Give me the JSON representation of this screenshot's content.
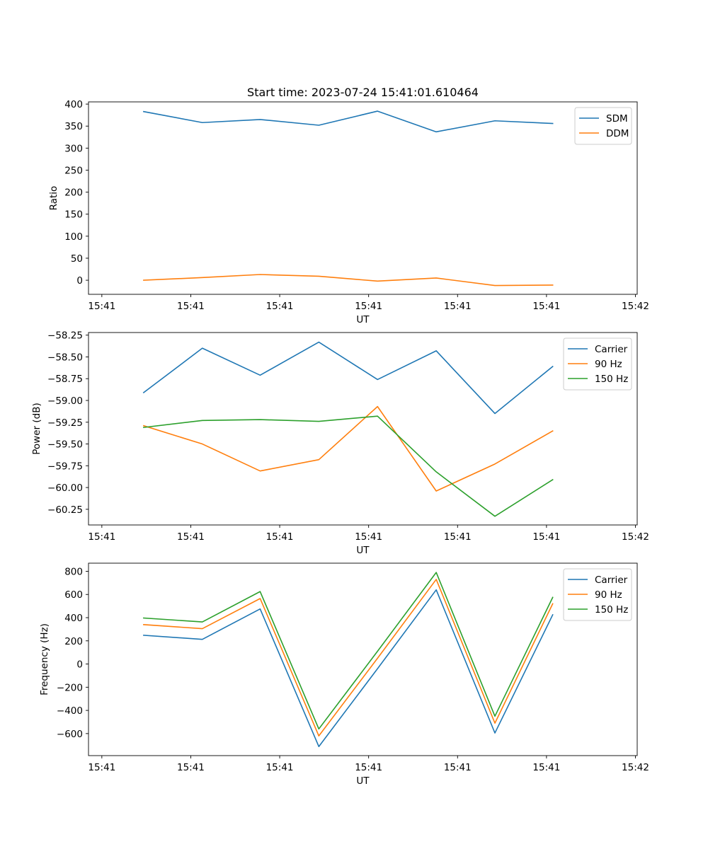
{
  "chart_data": [
    {
      "type": "line",
      "title": "Start time: 2023-07-24 15:41:01.610464",
      "xlabel": "UT",
      "ylabel": "Ratio",
      "x_tick_labels": [
        "15:41",
        "15:41",
        "15:41",
        "15:41",
        "15:41",
        "15:41",
        "15:42"
      ],
      "y_tick_labels": [
        "0",
        "50",
        "100",
        "150",
        "200",
        "250",
        "300",
        "350",
        "400"
      ],
      "y_ticks": [
        0,
        50,
        100,
        150,
        200,
        250,
        300,
        350,
        400
      ],
      "x_tick_positions": [
        0,
        1,
        2,
        3,
        4,
        5,
        6
      ],
      "xlim": [
        -0.15,
        6.02
      ],
      "ylim": [
        -32,
        405
      ],
      "x": [
        0.47,
        1.13,
        1.78,
        2.44,
        3.1,
        3.76,
        4.42,
        5.07
      ],
      "series": [
        {
          "name": "SDM",
          "color": "#1f77b4",
          "values": [
            383,
            358,
            365,
            352,
            384,
            337,
            362,
            356
          ]
        },
        {
          "name": "DDM",
          "color": "#ff7f0e",
          "values": [
            0,
            6,
            13,
            9,
            -2,
            5,
            -12,
            -11
          ]
        }
      ],
      "legend": "top-right",
      "grid": false
    },
    {
      "type": "line",
      "title": "",
      "xlabel": "UT",
      "ylabel": "Power (dB)",
      "x_tick_labels": [
        "15:41",
        "15:41",
        "15:41",
        "15:41",
        "15:41",
        "15:41",
        "15:42"
      ],
      "y_tick_labels": [
        "−60.25",
        "−60.00",
        "−59.75",
        "−59.50",
        "−59.25",
        "−59.00",
        "−58.75",
        "−58.50",
        "−58.25"
      ],
      "y_ticks": [
        -60.25,
        -60.0,
        -59.75,
        -59.5,
        -59.25,
        -59.0,
        -58.75,
        -58.5,
        -58.25
      ],
      "x_tick_positions": [
        0,
        1,
        2,
        3,
        4,
        5,
        6
      ],
      "xlim": [
        -0.15,
        6.02
      ],
      "ylim": [
        -60.43,
        -58.22
      ],
      "x": [
        0.47,
        1.13,
        1.78,
        2.44,
        3.1,
        3.76,
        4.42,
        5.07
      ],
      "series": [
        {
          "name": "Carrier",
          "color": "#1f77b4",
          "values": [
            -58.91,
            -58.4,
            -58.71,
            -58.33,
            -58.76,
            -58.43,
            -59.15,
            -58.61
          ]
        },
        {
          "name": "90 Hz",
          "color": "#ff7f0e",
          "values": [
            -59.29,
            -59.5,
            -59.81,
            -59.68,
            -59.07,
            -60.04,
            -59.73,
            -59.35
          ]
        },
        {
          "name": "150 Hz",
          "color": "#2ca02c",
          "values": [
            -59.31,
            -59.23,
            -59.22,
            -59.24,
            -59.18,
            -59.82,
            -60.33,
            -59.91
          ]
        }
      ],
      "legend": "top-right",
      "grid": false
    },
    {
      "type": "line",
      "title": "",
      "xlabel": "UT",
      "ylabel": "Frequency (Hz)",
      "x_tick_labels": [
        "15:41",
        "15:41",
        "15:41",
        "15:41",
        "15:41",
        "15:41",
        "15:42"
      ],
      "y_tick_labels": [
        "−600",
        "−400",
        "−200",
        "0",
        "200",
        "400",
        "600",
        "800"
      ],
      "y_ticks": [
        -600,
        -400,
        -200,
        0,
        200,
        400,
        600,
        800
      ],
      "x_tick_positions": [
        0,
        1,
        2,
        3,
        4,
        5,
        6
      ],
      "xlim": [
        -0.15,
        6.02
      ],
      "ylim": [
        -790,
        870
      ],
      "x": [
        0.47,
        1.13,
        1.78,
        2.44,
        3.1,
        3.76,
        4.42,
        5.07
      ],
      "series": [
        {
          "name": "Carrier",
          "color": "#1f77b4",
          "values": [
            248,
            213,
            475,
            -712,
            -40,
            640,
            -595,
            425
          ]
        },
        {
          "name": "90 Hz",
          "color": "#ff7f0e",
          "values": [
            340,
            305,
            565,
            -620,
            50,
            730,
            -510,
            520
          ]
        },
        {
          "name": "150 Hz",
          "color": "#2ca02c",
          "values": [
            397,
            363,
            625,
            -560,
            110,
            790,
            -450,
            575
          ]
        }
      ],
      "legend": "top-right",
      "grid": false
    }
  ]
}
